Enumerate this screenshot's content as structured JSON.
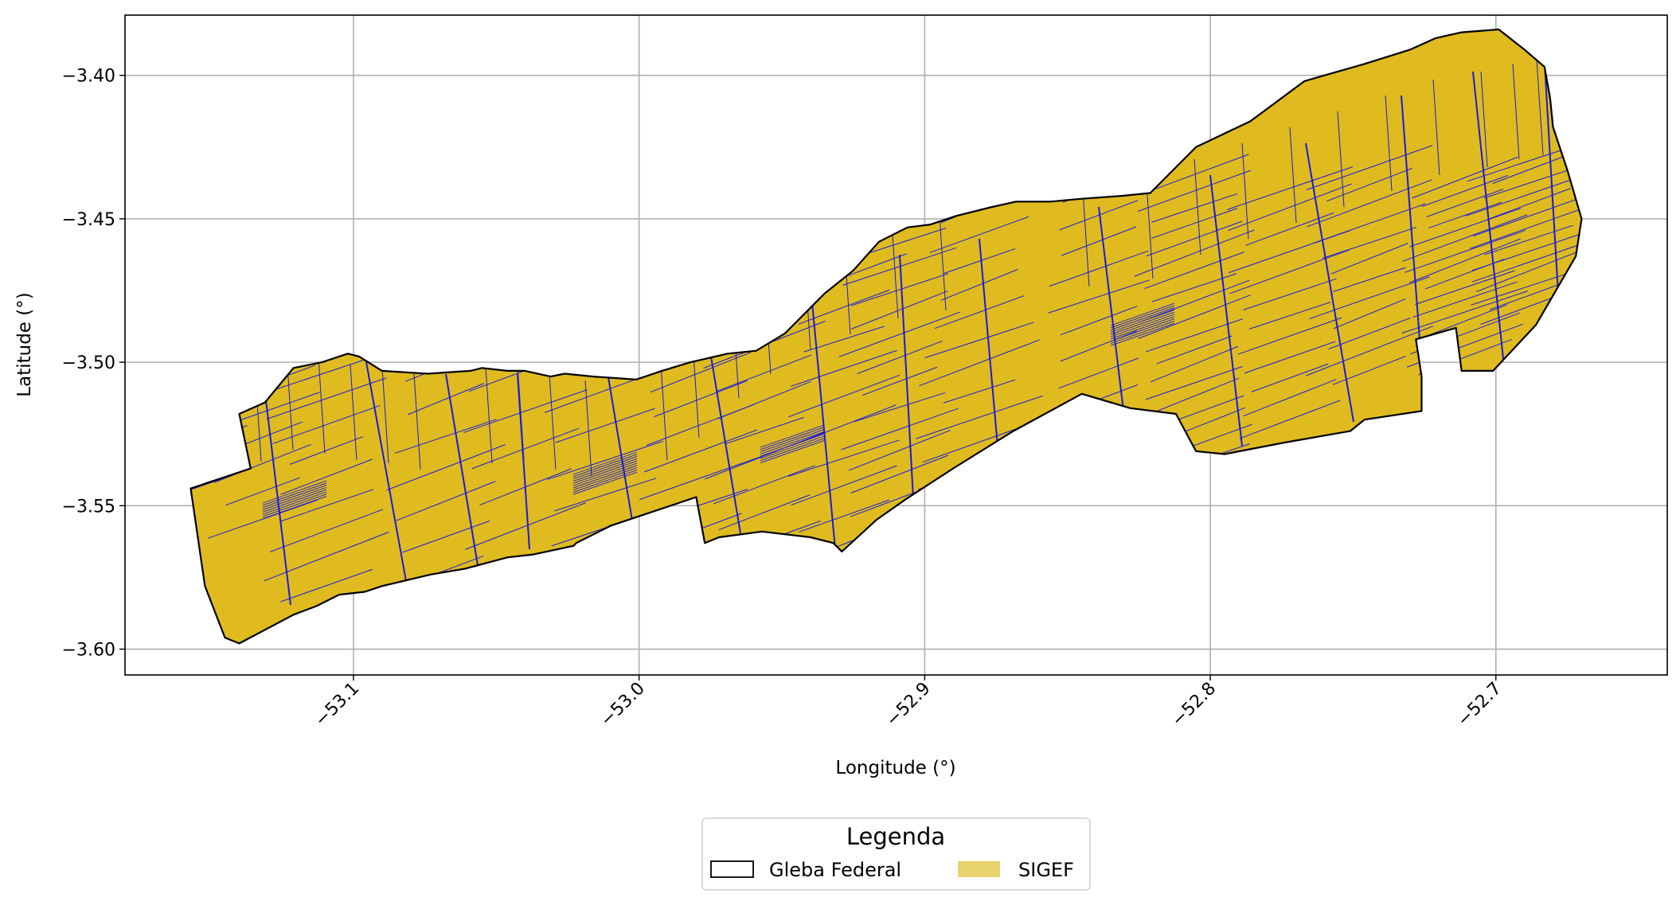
{
  "figure": {
    "xlabel": "Longitude (°)",
    "ylabel": "Latitude (°)",
    "x_ticks": [
      "−53.1",
      "−53.0",
      "−52.9",
      "−52.8",
      "−52.7"
    ],
    "y_ticks": [
      "−3.40",
      "−3.45",
      "−3.50",
      "−3.55",
      "−3.60"
    ],
    "grid": true,
    "tick_label_rotation_deg": 45
  },
  "legend": {
    "title": "Legenda",
    "placement": "bottom-center, below plot",
    "items": [
      {
        "label": "Gleba Federal",
        "style": "outline",
        "color": "#000000"
      },
      {
        "label": "SIGEF",
        "style": "fill",
        "color": "#e8d36e"
      }
    ]
  },
  "colors": {
    "gleba_outline": "#000000",
    "sigef_fill": "#dfbb1f",
    "sigef_parcel_edges": "#1a1adb",
    "grid": "#b0b0b0"
  },
  "chart_data": {
    "type": "map",
    "xlim": [
      -53.18,
      -52.64
    ],
    "ylim": [
      -3.609,
      -3.379
    ],
    "layers": [
      {
        "name": "Gleba Federal",
        "outline": [
          [
            -53.157,
            -3.544
          ],
          [
            -53.136,
            -3.537
          ],
          [
            -53.14,
            -3.518
          ],
          [
            -53.131,
            -3.514
          ],
          [
            -53.121,
            -3.502
          ],
          [
            -53.111,
            -3.5
          ],
          [
            -53.102,
            -3.497
          ],
          [
            -53.098,
            -3.498
          ],
          [
            -53.09,
            -3.503
          ],
          [
            -53.074,
            -3.504
          ],
          [
            -53.059,
            -3.503
          ],
          [
            -53.055,
            -3.502
          ],
          [
            -53.046,
            -3.503
          ],
          [
            -53.04,
            -3.503
          ],
          [
            -53.031,
            -3.505
          ],
          [
            -53.026,
            -3.504
          ],
          [
            -53.016,
            -3.505
          ],
          [
            -53.001,
            -3.506
          ],
          [
            -52.992,
            -3.503
          ],
          [
            -52.982,
            -3.5
          ],
          [
            -52.969,
            -3.497
          ],
          [
            -52.959,
            -3.496
          ],
          [
            -52.949,
            -3.49
          ],
          [
            -52.935,
            -3.476
          ],
          [
            -52.925,
            -3.468
          ],
          [
            -52.916,
            -3.458
          ],
          [
            -52.906,
            -3.453
          ],
          [
            -52.898,
            -3.452
          ],
          [
            -52.889,
            -3.449
          ],
          [
            -52.877,
            -3.446
          ],
          [
            -52.868,
            -3.444
          ],
          [
            -52.856,
            -3.444
          ],
          [
            -52.845,
            -3.443
          ],
          [
            -52.831,
            -3.442
          ],
          [
            -52.821,
            -3.441
          ],
          [
            -52.812,
            -3.432
          ],
          [
            -52.805,
            -3.425
          ],
          [
            -52.786,
            -3.416
          ],
          [
            -52.767,
            -3.402
          ],
          [
            -52.746,
            -3.396
          ],
          [
            -52.73,
            -3.391
          ],
          [
            -52.721,
            -3.387
          ],
          [
            -52.712,
            -3.385
          ],
          [
            -52.699,
            -3.384
          ],
          [
            -52.69,
            -3.391
          ],
          [
            -52.683,
            -3.397
          ],
          [
            -52.681,
            -3.408
          ],
          [
            -52.68,
            -3.418
          ],
          [
            -52.675,
            -3.433
          ],
          [
            -52.67,
            -3.45
          ],
          [
            -52.672,
            -3.463
          ],
          [
            -52.686,
            -3.487
          ],
          [
            -52.701,
            -3.503
          ],
          [
            -52.712,
            -3.503
          ],
          [
            -52.714,
            -3.488
          ],
          [
            -52.728,
            -3.492
          ],
          [
            -52.726,
            -3.505
          ],
          [
            -52.726,
            -3.517
          ],
          [
            -52.746,
            -3.52
          ],
          [
            -52.751,
            -3.524
          ],
          [
            -52.774,
            -3.528
          ],
          [
            -52.795,
            -3.532
          ],
          [
            -52.805,
            -3.531
          ],
          [
            -52.812,
            -3.518
          ],
          [
            -52.828,
            -3.516
          ],
          [
            -52.845,
            -3.511
          ],
          [
            -52.869,
            -3.524
          ],
          [
            -52.89,
            -3.537
          ],
          [
            -52.907,
            -3.548
          ],
          [
            -52.917,
            -3.555
          ],
          [
            -52.929,
            -3.566
          ],
          [
            -52.932,
            -3.563
          ],
          [
            -52.94,
            -3.561
          ],
          [
            -52.957,
            -3.559
          ],
          [
            -52.972,
            -3.561
          ],
          [
            -52.977,
            -3.563
          ],
          [
            -52.98,
            -3.547
          ],
          [
            -52.995,
            -3.552
          ],
          [
            -53.01,
            -3.557
          ],
          [
            -53.022,
            -3.563
          ],
          [
            -53.023,
            -3.564
          ],
          [
            -53.037,
            -3.567
          ],
          [
            -53.046,
            -3.568
          ],
          [
            -53.061,
            -3.572
          ],
          [
            -53.073,
            -3.574
          ],
          [
            -53.09,
            -3.578
          ],
          [
            -53.096,
            -3.58
          ],
          [
            -53.105,
            -3.581
          ],
          [
            -53.113,
            -3.585
          ],
          [
            -53.121,
            -3.588
          ],
          [
            -53.14,
            -3.598
          ],
          [
            -53.145,
            -3.596
          ],
          [
            -53.152,
            -3.578
          ],
          [
            -53.157,
            -3.544
          ]
        ]
      },
      {
        "name": "SIGEF",
        "parcel_lines_approx": 230,
        "area_within_gleba": "nearly full coverage"
      }
    ]
  }
}
